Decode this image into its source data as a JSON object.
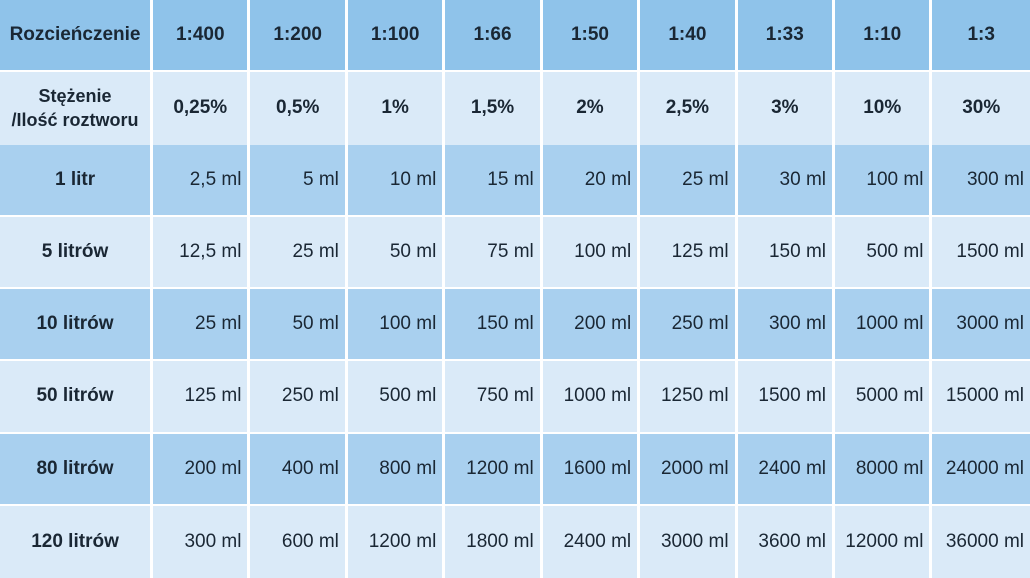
{
  "header": {
    "label": "Rozcieńczenie",
    "ratios": [
      "1:400",
      "1:200",
      "1:100",
      "1:66",
      "1:50",
      "1:40",
      "1:33",
      "1:10",
      "1:3"
    ]
  },
  "concentration": {
    "label_line1": "Stężenie",
    "label_line2": "/Ilość roztworu",
    "values": [
      "0,25%",
      "0,5%",
      "1%",
      "1,5%",
      "2%",
      "2,5%",
      "3%",
      "10%",
      "30%"
    ]
  },
  "rows": [
    {
      "label": "1 litr",
      "values": [
        "2,5 ml",
        "5 ml",
        "10 ml",
        "15 ml",
        "20 ml",
        "25 ml",
        "30 ml",
        "100 ml",
        "300 ml"
      ]
    },
    {
      "label": "5 litrów",
      "values": [
        "12,5 ml",
        "25 ml",
        "50 ml",
        "75 ml",
        "100 ml",
        "125 ml",
        "150 ml",
        "500 ml",
        "1500 ml"
      ]
    },
    {
      "label": "10 litrów",
      "values": [
        "25 ml",
        "50 ml",
        "100 ml",
        "150 ml",
        "200 ml",
        "250 ml",
        "300 ml",
        "1000 ml",
        "3000 ml"
      ]
    },
    {
      "label": "50 litrów",
      "values": [
        "125 ml",
        "250 ml",
        "500 ml",
        "750 ml",
        "1000 ml",
        "1250 ml",
        "1500 ml",
        "5000 ml",
        "15000 ml"
      ]
    },
    {
      "label": "80 litrów",
      "values": [
        "200 ml",
        "400 ml",
        "800 ml",
        "1200 ml",
        "1600 ml",
        "2000 ml",
        "2400 ml",
        "8000 ml",
        "24000 ml"
      ]
    },
    {
      "label": "120 litrów",
      "values": [
        "300 ml",
        "600 ml",
        "1200 ml",
        "1800 ml",
        "2400 ml",
        "3000 ml",
        "3600 ml",
        "12000 ml",
        "36000 ml"
      ]
    }
  ],
  "colors": {
    "header_bg": "#8fc3ea",
    "row_dark_bg": "#a9d0ef",
    "row_light_bg": "#daeaf8",
    "text": "#1a2734"
  }
}
